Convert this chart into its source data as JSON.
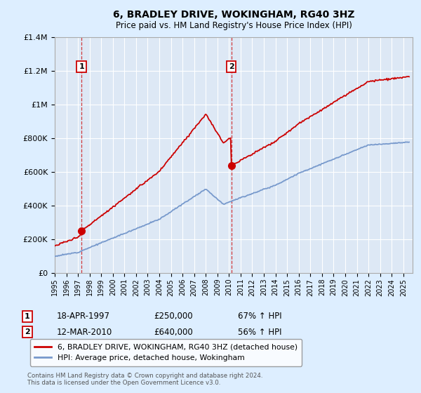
{
  "title": "6, BRADLEY DRIVE, WOKINGHAM, RG40 3HZ",
  "subtitle": "Price paid vs. HM Land Registry's House Price Index (HPI)",
  "legend_line1": "6, BRADLEY DRIVE, WOKINGHAM, RG40 3HZ (detached house)",
  "legend_line2": "HPI: Average price, detached house, Wokingham",
  "sale1_date": "18-APR-1997",
  "sale1_price": "£250,000",
  "sale1_hpi": "67% ↑ HPI",
  "sale1_year": 1997.3,
  "sale1_value": 250000,
  "sale2_date": "12-MAR-2010",
  "sale2_price": "£640,000",
  "sale2_hpi": "56% ↑ HPI",
  "sale2_year": 2010.2,
  "sale2_value": 640000,
  "footnote": "Contains HM Land Registry data © Crown copyright and database right 2024.\nThis data is licensed under the Open Government Licence v3.0.",
  "hpi_color": "#7799cc",
  "price_color": "#cc0000",
  "bg_color": "#ddeeff",
  "plot_bg": "#dde8f5",
  "grid_color": "#ffffff",
  "ylim": [
    0,
    1400000
  ],
  "xlim_start": 1995,
  "xlim_end": 2025.8
}
